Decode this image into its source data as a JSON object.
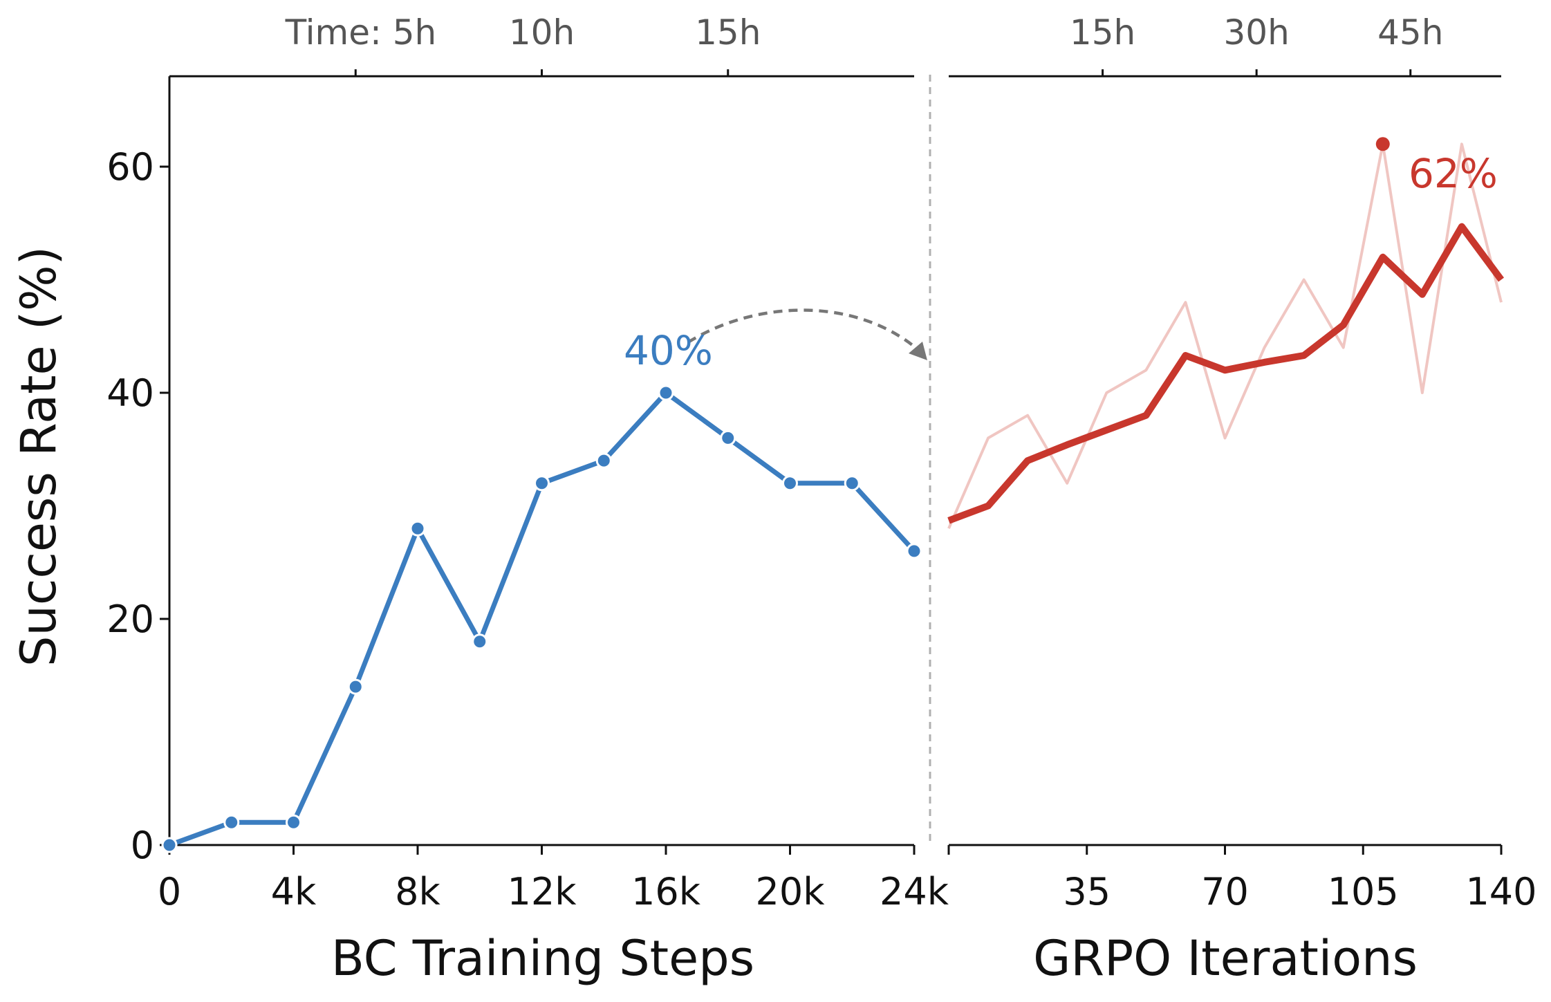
{
  "chart_data": [
    {
      "type": "line",
      "panel": "left",
      "xlabel": "BC Training Steps",
      "ylabel": "Success Rate (%)",
      "xlim": [
        0,
        24000
      ],
      "ylim": [
        0,
        68
      ],
      "xticks": [
        0,
        4000,
        8000,
        12000,
        16000,
        20000,
        24000
      ],
      "xtick_labels": [
        "0",
        "4k",
        "8k",
        "12k",
        "16k",
        "20k",
        "24k"
      ],
      "yticks": [
        0,
        20,
        40,
        60
      ],
      "ytick_labels": [
        "0",
        "20",
        "40",
        "60"
      ],
      "top_axis": {
        "ticks": [
          6000,
          12000,
          18000
        ],
        "labels": [
          "Time: 5h",
          "10h",
          "15h"
        ]
      },
      "series": [
        {
          "color": "#3b7dc0",
          "markers": true,
          "x": [
            0,
            2000,
            4000,
            6000,
            8000,
            10000,
            12000,
            14000,
            16000,
            18000,
            20000,
            22000,
            24000
          ],
          "y": [
            0,
            2,
            2,
            14,
            28,
            18,
            32,
            34,
            40,
            36,
            32,
            32,
            26
          ]
        }
      ],
      "annotations": [
        {
          "text": "40%",
          "x": 16000,
          "y": 40,
          "color": "#3b7dc0"
        }
      ],
      "grid": false
    },
    {
      "type": "line",
      "panel": "right",
      "xlabel": "GRPO Iterations",
      "xlim": [
        0,
        140
      ],
      "ylim": [
        0,
        68
      ],
      "xticks": [
        0,
        35,
        70,
        105,
        140
      ],
      "xtick_labels": [
        "",
        "35",
        "70",
        "105",
        "140"
      ],
      "top_axis": {
        "ticks": [
          39,
          78,
          117
        ],
        "labels": [
          "15h",
          "30h",
          "45h"
        ]
      },
      "series": [
        {
          "color": "#f0c6c2",
          "style": "raw",
          "x": [
            0,
            10,
            20,
            30,
            40,
            50,
            60,
            70,
            80,
            90,
            100,
            110,
            120,
            130,
            140
          ],
          "y": [
            28,
            36,
            38,
            32,
            40,
            42,
            48,
            36,
            44,
            50,
            44,
            62,
            40,
            62,
            48
          ]
        },
        {
          "color": "#c8372d",
          "style": "smoothed",
          "x": [
            0,
            10,
            20,
            30,
            40,
            50,
            60,
            70,
            80,
            90,
            100,
            110,
            120,
            130,
            140
          ],
          "y": [
            28.7,
            30,
            34,
            35.4,
            36.7,
            38,
            43.3,
            42,
            42.7,
            43.3,
            46,
            52,
            48.7,
            54.7,
            50
          ]
        }
      ],
      "peak_point": {
        "x": 110,
        "y": 62,
        "color": "#c8372d"
      },
      "annotations": [
        {
          "text": "62%",
          "x": 110,
          "y": 62,
          "color": "#c8372d"
        }
      ],
      "grid": false
    }
  ]
}
